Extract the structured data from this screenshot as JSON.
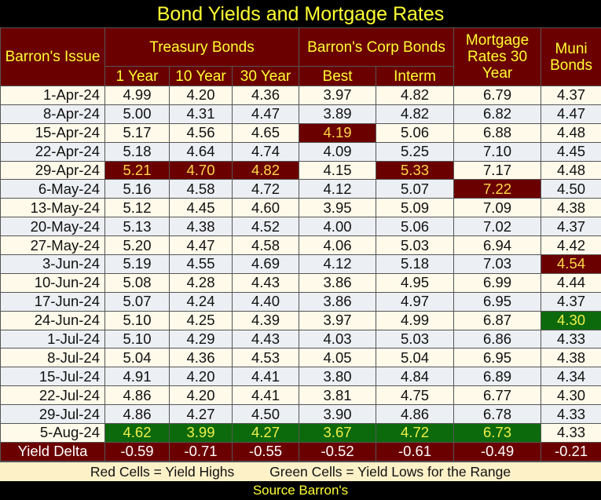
{
  "title": "Bond Yields and Mortgage Rates",
  "headers": {
    "issue": "Barron's Issue",
    "treasury": "Treasury Bonds",
    "corp": "Barron's Corp Bonds",
    "mortgage": "Mortgage Rates 30 Year",
    "muni": "Muni Bonds",
    "sub": [
      "1 Year",
      "10 Year",
      "30 Year",
      "Best",
      "Interm"
    ]
  },
  "colors": {
    "high": "#6b0000",
    "low": "#0c6a0c",
    "accent": "#ffff33"
  },
  "rows": [
    {
      "date": "1-Apr-24",
      "values": [
        "4.99",
        "4.20",
        "4.36",
        "3.97",
        "4.82",
        "6.79",
        "4.37"
      ],
      "marks": [
        "",
        "",
        "",
        "",
        "",
        "",
        ""
      ]
    },
    {
      "date": "8-Apr-24",
      "values": [
        "5.00",
        "4.31",
        "4.47",
        "3.89",
        "4.82",
        "6.82",
        "4.47"
      ],
      "marks": [
        "",
        "",
        "",
        "",
        "",
        "",
        ""
      ]
    },
    {
      "date": "15-Apr-24",
      "values": [
        "5.17",
        "4.56",
        "4.65",
        "4.19",
        "5.06",
        "6.88",
        "4.48"
      ],
      "marks": [
        "",
        "",
        "",
        "high",
        "",
        "",
        ""
      ]
    },
    {
      "date": "22-Apr-24",
      "values": [
        "5.18",
        "4.64",
        "4.74",
        "4.09",
        "5.25",
        "7.10",
        "4.45"
      ],
      "marks": [
        "",
        "",
        "",
        "",
        "",
        "",
        ""
      ]
    },
    {
      "date": "29-Apr-24",
      "values": [
        "5.21",
        "4.70",
        "4.82",
        "4.15",
        "5.33",
        "7.17",
        "4.48"
      ],
      "marks": [
        "high",
        "high",
        "high",
        "",
        "high",
        "",
        ""
      ]
    },
    {
      "date": "6-May-24",
      "values": [
        "5.16",
        "4.58",
        "4.72",
        "4.12",
        "5.07",
        "7.22",
        "4.50"
      ],
      "marks": [
        "",
        "",
        "",
        "",
        "",
        "high",
        ""
      ]
    },
    {
      "date": "13-May-24",
      "values": [
        "5.12",
        "4.45",
        "4.60",
        "3.95",
        "5.09",
        "7.09",
        "4.38"
      ],
      "marks": [
        "",
        "",
        "",
        "",
        "",
        "",
        ""
      ]
    },
    {
      "date": "20-May-24",
      "values": [
        "5.13",
        "4.38",
        "4.52",
        "4.00",
        "5.06",
        "7.02",
        "4.37"
      ],
      "marks": [
        "",
        "",
        "",
        "",
        "",
        "",
        ""
      ]
    },
    {
      "date": "27-May-24",
      "values": [
        "5.20",
        "4.47",
        "4.58",
        "4.06",
        "5.03",
        "6.94",
        "4.42"
      ],
      "marks": [
        "",
        "",
        "",
        "",
        "",
        "",
        ""
      ]
    },
    {
      "date": "3-Jun-24",
      "values": [
        "5.19",
        "4.55",
        "4.69",
        "4.12",
        "5.18",
        "7.03",
        "4.54"
      ],
      "marks": [
        "",
        "",
        "",
        "",
        "",
        "",
        "high"
      ]
    },
    {
      "date": "10-Jun-24",
      "values": [
        "5.08",
        "4.28",
        "4.43",
        "3.86",
        "4.95",
        "6.99",
        "4.44"
      ],
      "marks": [
        "",
        "",
        "",
        "",
        "",
        "",
        ""
      ]
    },
    {
      "date": "17-Jun-24",
      "values": [
        "5.07",
        "4.24",
        "4.40",
        "3.86",
        "4.97",
        "6.95",
        "4.37"
      ],
      "marks": [
        "",
        "",
        "",
        "",
        "",
        "",
        ""
      ]
    },
    {
      "date": "24-Jun-24",
      "values": [
        "5.10",
        "4.25",
        "4.39",
        "3.97",
        "4.99",
        "6.87",
        "4.30"
      ],
      "marks": [
        "",
        "",
        "",
        "",
        "",
        "",
        "low"
      ]
    },
    {
      "date": "1-Jul-24",
      "values": [
        "5.10",
        "4.29",
        "4.43",
        "4.03",
        "5.03",
        "6.86",
        "4.33"
      ],
      "marks": [
        "",
        "",
        "",
        "",
        "",
        "",
        ""
      ]
    },
    {
      "date": "8-Jul-24",
      "values": [
        "5.04",
        "4.36",
        "4.53",
        "4.05",
        "5.04",
        "6.95",
        "4.38"
      ],
      "marks": [
        "",
        "",
        "",
        "",
        "",
        "",
        ""
      ]
    },
    {
      "date": "15-Jul-24",
      "values": [
        "4.91",
        "4.20",
        "4.41",
        "3.80",
        "4.84",
        "6.89",
        "4.34"
      ],
      "marks": [
        "",
        "",
        "",
        "",
        "",
        "",
        ""
      ]
    },
    {
      "date": "22-Jul-24",
      "values": [
        "4.86",
        "4.20",
        "4.41",
        "3.81",
        "4.75",
        "6.77",
        "4.30"
      ],
      "marks": [
        "",
        "",
        "",
        "",
        "",
        "",
        ""
      ]
    },
    {
      "date": "29-Jul-24",
      "values": [
        "4.86",
        "4.27",
        "4.50",
        "3.90",
        "4.86",
        "6.78",
        "4.33"
      ],
      "marks": [
        "",
        "",
        "",
        "",
        "",
        "",
        ""
      ]
    },
    {
      "date": "5-Aug-24",
      "values": [
        "4.62",
        "3.99",
        "4.27",
        "3.67",
        "4.72",
        "6.73",
        "4.33"
      ],
      "marks": [
        "low",
        "low",
        "low",
        "low",
        "low",
        "low",
        ""
      ]
    }
  ],
  "delta": {
    "label": "Yield Delta",
    "values": [
      "-0.59",
      "-0.71",
      "-0.55",
      "-0.52",
      "-0.61",
      "-0.49",
      "-0.21"
    ]
  },
  "legend": {
    "red": "Red Cells = Yield Highs",
    "green": "Green Cells = Yield Lows for the Range"
  },
  "source": "Source Barron's"
}
